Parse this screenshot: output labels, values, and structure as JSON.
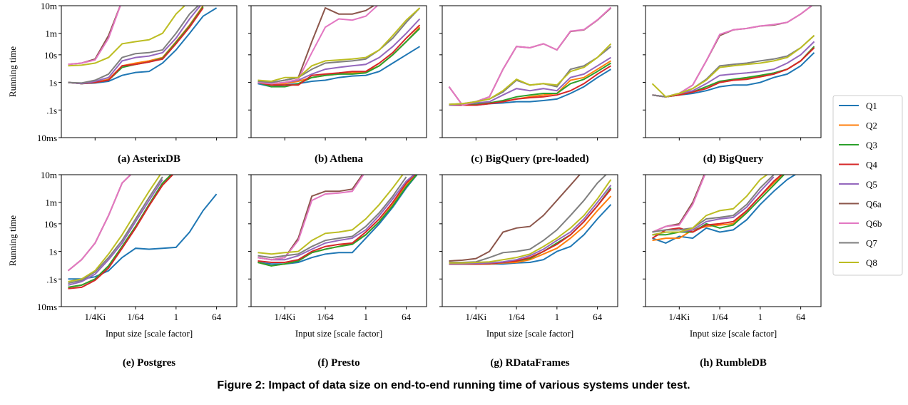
{
  "chart_data": {
    "type": "line",
    "ylabel": "Running time",
    "xlabel": "Input size [scale factor]",
    "caption": "Figure 2: Impact of data size on end-to-end running time of various systems under test.",
    "log_x": true,
    "log_y": true,
    "x": [
      1.52587890625e-05,
      6.103515625e-05,
      0.000244140625,
      0.0009765625,
      0.00390625,
      0.015625,
      0.0625,
      0.25,
      1,
      4,
      16,
      64,
      256
    ],
    "xlim": [
      7.62939453125e-06,
      512
    ],
    "xticks": [
      {
        "value": 0.000244140625,
        "label": "1/4Ki"
      },
      {
        "value": 0.015625,
        "label": "1/64"
      },
      1,
      64
    ],
    "ylim": [
      0.01,
      600
    ],
    "yticks": [
      {
        "value": 0.01,
        "label": "10ms"
      },
      {
        "value": 0.1,
        "label": ".1s"
      },
      {
        "value": 1,
        "label": "1s"
      },
      {
        "value": 10,
        "label": "10s"
      },
      {
        "value": 60,
        "label": "1m"
      },
      {
        "value": 600,
        "label": "10m"
      }
    ],
    "legend": [
      {
        "name": "Q1",
        "color": "#1f77b4"
      },
      {
        "name": "Q2",
        "color": "#ff7f0e"
      },
      {
        "name": "Q3",
        "color": "#2ca02c"
      },
      {
        "name": "Q4",
        "color": "#d62728"
      },
      {
        "name": "Q5",
        "color": "#9467bd"
      },
      {
        "name": "Q6a",
        "color": "#8c564b"
      },
      {
        "name": "Q6b",
        "color": "#e377c2"
      },
      {
        "name": "Q7",
        "color": "#7f7f7f"
      },
      {
        "name": "Q8",
        "color": "#bcbd22"
      }
    ],
    "panels": [
      {
        "title": "(a) AsterixDB",
        "series": [
          [
            1,
            0.9,
            0.95,
            1.1,
            1.8,
            2.3,
            2.5,
            5,
            15,
            60,
            250,
            500,
            null
          ],
          [
            1,
            0.9,
            1,
            1.3,
            4,
            5,
            6,
            8,
            30,
            120,
            600,
            null,
            null
          ],
          [
            1,
            0.9,
            1,
            1.2,
            3.5,
            4.5,
            5.5,
            7.5,
            28,
            110,
            550,
            null,
            null
          ],
          [
            1,
            0.9,
            1,
            1.2,
            4,
            4.5,
            5.5,
            7,
            25,
            100,
            500,
            null,
            null
          ],
          [
            1,
            0.9,
            1.1,
            1.5,
            6,
            8,
            9,
            12,
            40,
            200,
            800,
            null,
            null
          ],
          [
            4.5,
            5,
            7,
            50,
            900,
            null,
            null,
            null,
            null,
            null,
            null,
            null,
            null
          ],
          [
            4.5,
            5,
            6.5,
            40,
            900,
            null,
            null,
            null,
            null,
            null,
            null,
            null,
            null
          ],
          [
            1,
            0.95,
            1.2,
            2,
            8,
            11,
            12,
            15,
            60,
            300,
            900,
            null,
            null
          ],
          [
            4,
            4.2,
            5,
            8,
            25,
            30,
            35,
            60,
            300,
            900,
            null,
            null,
            null
          ]
        ]
      },
      {
        "title": "(b) Athena",
        "series": [
          [
            0.9,
            0.7,
            0.8,
            0.9,
            1.1,
            1.2,
            1.5,
            1.7,
            1.8,
            2.5,
            5,
            10,
            20
          ],
          [
            1,
            0.8,
            0.9,
            1.1,
            1.5,
            1.8,
            2,
            2.2,
            2.4,
            4,
            10,
            30,
            100
          ],
          [
            1,
            0.7,
            0.7,
            0.9,
            1.5,
            1.8,
            2,
            2,
            2.2,
            4,
            10,
            30,
            90
          ],
          [
            1,
            0.8,
            0.8,
            0.8,
            1.8,
            2,
            2.2,
            2.5,
            2.5,
            5,
            12,
            40,
            120
          ],
          [
            1,
            0.9,
            1,
            1.2,
            2,
            3,
            3.5,
            4,
            4.5,
            8,
            20,
            60,
            200
          ],
          [
            1,
            1,
            1.2,
            1.5,
            30,
            500,
            300,
            300,
            400,
            800,
            null,
            null,
            null
          ],
          [
            1,
            0.9,
            1,
            1.3,
            12,
            100,
            200,
            180,
            250,
            700,
            null,
            null,
            null
          ],
          [
            1.1,
            1,
            1.2,
            1.5,
            3,
            5,
            5.5,
            6,
            7,
            15,
            40,
            150,
            500
          ],
          [
            1.2,
            1.1,
            1.5,
            1.5,
            4,
            6,
            6.5,
            7,
            8,
            15,
            50,
            180,
            500
          ]
        ]
      },
      {
        "title": "(c) BigQuery (pre-loaded)",
        "series": [
          [
            0.15,
            0.15,
            0.15,
            0.17,
            0.18,
            0.2,
            0.2,
            0.22,
            0.25,
            0.4,
            0.7,
            1.5,
            3
          ],
          [
            0.15,
            0.15,
            0.16,
            0.18,
            0.2,
            0.25,
            0.3,
            0.35,
            0.4,
            1.2,
            1.5,
            3,
            6
          ],
          [
            0.15,
            0.15,
            0.16,
            0.18,
            0.22,
            0.3,
            0.35,
            0.4,
            0.4,
            0.9,
            1.3,
            2.5,
            5
          ],
          [
            0.15,
            0.15,
            0.15,
            0.17,
            0.2,
            0.25,
            0.28,
            0.3,
            0.35,
            0.5,
            0.9,
            2,
            4
          ],
          [
            0.15,
            0.16,
            0.18,
            0.2,
            0.35,
            0.6,
            0.5,
            0.6,
            0.5,
            1.5,
            2,
            4,
            8
          ],
          [
            0.7,
            0.15,
            0.2,
            0.3,
            3,
            20,
            18,
            25,
            15,
            70,
            80,
            180,
            500
          ],
          [
            0.7,
            0.15,
            0.2,
            0.3,
            3,
            20,
            18,
            25,
            15,
            72,
            82,
            185,
            520
          ],
          [
            0.16,
            0.17,
            0.2,
            0.25,
            0.45,
            1.2,
            0.8,
            0.9,
            0.7,
            3,
            4,
            8,
            20
          ],
          [
            0.16,
            0.17,
            0.2,
            0.25,
            0.5,
            1.3,
            0.8,
            0.9,
            0.8,
            2.5,
            3.5,
            8,
            25
          ]
        ]
      },
      {
        "title": "(d) BigQuery",
        "series": [
          [
            0.35,
            0.3,
            0.35,
            0.4,
            0.5,
            0.7,
            0.8,
            0.8,
            1,
            1.5,
            2,
            4,
            12
          ],
          [
            0.35,
            0.3,
            0.35,
            0.45,
            0.6,
            1,
            1.2,
            1.4,
            1.6,
            2,
            3,
            6,
            20
          ],
          [
            0.35,
            0.3,
            0.35,
            0.45,
            0.7,
            1.1,
            1.3,
            1.5,
            1.8,
            2.2,
            3,
            6,
            20
          ],
          [
            0.35,
            0.3,
            0.35,
            0.45,
            0.6,
            1,
            1.2,
            1.3,
            1.6,
            2,
            3,
            6,
            18
          ],
          [
            0.35,
            0.3,
            0.4,
            0.5,
            0.9,
            1.8,
            2,
            2.2,
            2.5,
            3,
            5,
            10,
            30
          ],
          [
            0.35,
            0.3,
            0.4,
            0.8,
            6,
            50,
            80,
            90,
            110,
            120,
            150,
            300,
            700
          ],
          [
            0.35,
            0.3,
            0.4,
            0.8,
            6,
            55,
            80,
            90,
            110,
            125,
            150,
            300,
            700
          ],
          [
            0.35,
            0.3,
            0.4,
            0.6,
            1.3,
            4,
            4.5,
            5,
            6,
            7,
            9,
            18,
            50
          ],
          [
            0.9,
            0.3,
            0.4,
            0.6,
            1.2,
            3.5,
            4,
            4.5,
            5,
            6,
            8,
            18,
            50
          ]
        ]
      },
      {
        "title": "(e) Postgres",
        "series": [
          [
            0.1,
            0.1,
            0.12,
            0.2,
            0.6,
            1.3,
            1.2,
            1.3,
            1.4,
            5,
            30,
            120,
            null
          ],
          [
            0.05,
            0.06,
            0.1,
            0.3,
            1.5,
            8,
            50,
            300,
            900,
            null,
            null,
            null,
            null
          ],
          [
            0.05,
            0.06,
            0.1,
            0.3,
            1.5,
            8,
            50,
            300,
            900,
            null,
            null,
            null,
            null
          ],
          [
            0.045,
            0.05,
            0.09,
            0.25,
            1.3,
            7,
            45,
            250,
            800,
            null,
            null,
            null,
            null
          ],
          [
            0.06,
            0.08,
            0.15,
            0.5,
            2,
            12,
            70,
            400,
            null,
            null,
            null,
            null,
            null
          ],
          [
            0.2,
            0.5,
            2,
            20,
            300,
            900,
            null,
            null,
            null,
            null,
            null,
            null,
            null
          ],
          [
            0.2,
            0.5,
            2,
            20,
            300,
            900,
            null,
            null,
            null,
            null,
            null,
            null,
            null
          ],
          [
            0.07,
            0.09,
            0.18,
            0.6,
            2.5,
            15,
            90,
            500,
            null,
            null,
            null,
            null,
            null
          ],
          [
            0.08,
            0.1,
            0.2,
            0.8,
            4,
            25,
            150,
            800,
            null,
            null,
            null,
            null,
            null
          ]
        ]
      },
      {
        "title": "(f) Presto",
        "series": [
          [
            0.4,
            0.35,
            0.35,
            0.4,
            0.6,
            0.8,
            0.9,
            0.9,
            3,
            10,
            40,
            200,
            800
          ],
          [
            0.4,
            0.3,
            0.35,
            0.45,
            0.9,
            1.2,
            1.5,
            2,
            4,
            12,
            50,
            250,
            900
          ],
          [
            0.4,
            0.3,
            0.35,
            0.45,
            0.9,
            1.2,
            1.5,
            1.8,
            4,
            12,
            45,
            220,
            800
          ],
          [
            0.45,
            0.4,
            0.4,
            0.5,
            1,
            1.5,
            1.8,
            2,
            5,
            15,
            60,
            300,
            900
          ],
          [
            0.6,
            0.5,
            0.5,
            0.7,
            1.2,
            2,
            2.5,
            3,
            6,
            20,
            80,
            350,
            900
          ],
          [
            0.6,
            0.5,
            0.6,
            3,
            100,
            150,
            150,
            180,
            900,
            null,
            null,
            null,
            null
          ],
          [
            0.6,
            0.5,
            0.6,
            2.5,
            70,
            120,
            130,
            150,
            800,
            null,
            null,
            null,
            null
          ],
          [
            0.7,
            0.6,
            0.7,
            0.8,
            1.5,
            2.5,
            3,
            3.5,
            8,
            25,
            100,
            500,
            null
          ],
          [
            0.9,
            0.8,
            0.9,
            1,
            2.5,
            4.5,
            5,
            6,
            15,
            50,
            200,
            900,
            null
          ]
        ]
      },
      {
        "title": "(g) RDataFrames",
        "series": [
          [
            0.35,
            0.35,
            0.35,
            0.35,
            0.35,
            0.38,
            0.4,
            0.5,
            1,
            1.5,
            4,
            15,
            50
          ],
          [
            0.35,
            0.35,
            0.35,
            0.35,
            0.38,
            0.4,
            0.5,
            0.8,
            1.3,
            3,
            8,
            30,
            100
          ],
          [
            0.35,
            0.35,
            0.35,
            0.36,
            0.4,
            0.45,
            0.55,
            1,
            2,
            4,
            12,
            45,
            200
          ],
          [
            0.35,
            0.35,
            0.35,
            0.36,
            0.4,
            0.45,
            0.6,
            1,
            1.8,
            4,
            12,
            45,
            180
          ],
          [
            0.36,
            0.36,
            0.37,
            0.38,
            0.42,
            0.5,
            0.7,
            1.2,
            2.5,
            5,
            15,
            60,
            250
          ],
          [
            0.45,
            0.48,
            0.55,
            1,
            5,
            7,
            8,
            20,
            70,
            250,
            900,
            null,
            null
          ],
          [
            null,
            null,
            null,
            null,
            null,
            null,
            null,
            null,
            null,
            null,
            null,
            null,
            null
          ],
          [
            0.4,
            0.4,
            0.42,
            0.6,
            0.9,
            1,
            1.2,
            2.5,
            6,
            20,
            70,
            300,
            900
          ],
          [
            0.38,
            0.38,
            0.4,
            0.42,
            0.5,
            0.6,
            0.8,
            1.5,
            3,
            7,
            20,
            80,
            400
          ]
        ]
      },
      {
        "title": "(h) RumbleDB",
        "series": [
          [
            3,
            2,
            3.5,
            3,
            7,
            5,
            6,
            14,
            50,
            150,
            400,
            800,
            null
          ],
          [
            2.5,
            3,
            3,
            6,
            8,
            9,
            10,
            30,
            100,
            300,
            900,
            null,
            null
          ],
          [
            4,
            4,
            5,
            5,
            10,
            7,
            9,
            25,
            80,
            250,
            800,
            null,
            null
          ],
          [
            3,
            6,
            7,
            5,
            9,
            10,
            12,
            30,
            100,
            350,
            900,
            null,
            null
          ],
          [
            4,
            5,
            5,
            6,
            12,
            15,
            17,
            40,
            150,
            500,
            null,
            null,
            null
          ],
          [
            5,
            8,
            10,
            60,
            900,
            null,
            null,
            null,
            null,
            null,
            null,
            null,
            null
          ],
          [
            5,
            8,
            9,
            50,
            800,
            null,
            null,
            null,
            null,
            null,
            null,
            null,
            null
          ],
          [
            5,
            6,
            6,
            7,
            15,
            17,
            20,
            50,
            200,
            600,
            null,
            null,
            null
          ],
          [
            4,
            5,
            5,
            7,
            20,
            30,
            35,
            100,
            400,
            900,
            null,
            null,
            null
          ]
        ]
      }
    ]
  }
}
